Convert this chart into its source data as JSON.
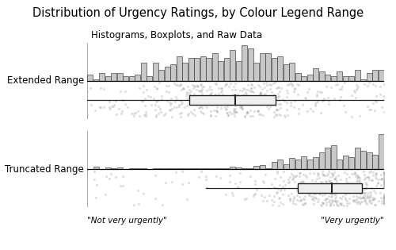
{
  "title": "Distribution of Urgency Ratings, by Colour Legend Range",
  "subtitle": "Histograms, Boxplots, and Raw Data",
  "xlabel_left": "\"Not very urgently\"",
  "xlabel_right": "\"Very urgently\"",
  "conditions": [
    "Extended Range",
    "Truncated Range"
  ],
  "xlim": [
    0,
    100
  ],
  "hist_color": "#c8c8c8",
  "hist_edge_color": "#222222",
  "box_face_color": "#eeeeee",
  "box_edge_color": "#222222",
  "dot_color": "#999999",
  "dot_alpha": 0.3,
  "n_bins": 50,
  "dot_size": 5,
  "background_color": "#ffffff",
  "title_fontsize": 10.5,
  "subtitle_fontsize": 8.5,
  "label_fontsize": 7.5,
  "ylabel_fontsize": 8.5,
  "ext_seed_data": 42,
  "trunc_seed_data": 99,
  "ext_seed_jitter": 7,
  "trunc_seed_jitter": 13
}
